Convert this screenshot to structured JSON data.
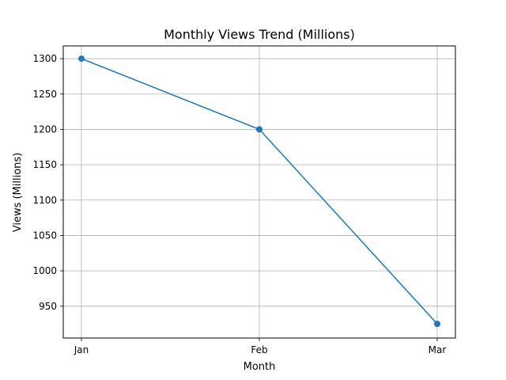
{
  "chart_data": {
    "type": "line",
    "title": "Monthly Views Trend (Millions)",
    "xlabel": "Month",
    "ylabel": "Views (Millions)",
    "categories": [
      "Jan",
      "Feb",
      "Mar"
    ],
    "series": [
      {
        "values": [
          1300,
          1200,
          925
        ],
        "color": "#1f77b4",
        "marker": "circle"
      }
    ],
    "ylim": [
      905,
      1318
    ],
    "yticks": [
      950,
      1000,
      1050,
      1100,
      1150,
      1200,
      1250,
      1300
    ],
    "grid": true,
    "legend": "none"
  }
}
